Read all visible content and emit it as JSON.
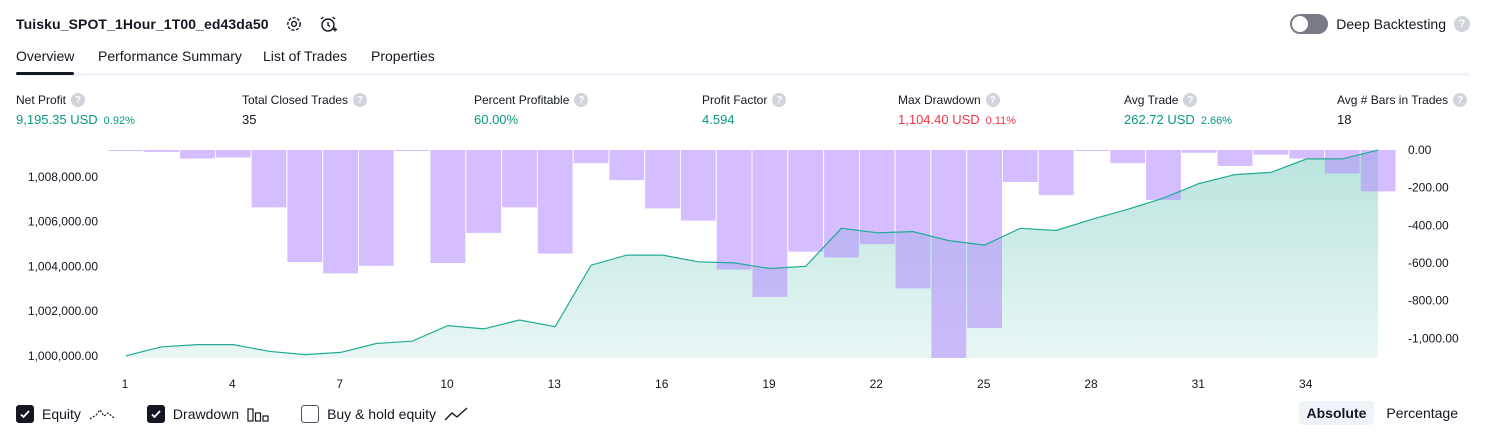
{
  "header": {
    "strategy_name": "Tuisku_SPOT_1Hour_1T00_ed43da50",
    "icons": [
      "gear-icon",
      "alarm-add-icon"
    ],
    "deep_backtesting_label": "Deep Backtesting",
    "deep_backtesting_on": false,
    "help_glyph": "?"
  },
  "tabs": [
    {
      "label": "Overview",
      "active": true
    },
    {
      "label": "Performance Summary",
      "active": false
    },
    {
      "label": "List of Trades",
      "active": false
    },
    {
      "label": "Properties",
      "active": false
    }
  ],
  "metrics": [
    {
      "label": "Net Profit",
      "value": "9,195.35 USD",
      "pct": "0.92%",
      "color": "#089981"
    },
    {
      "label": "Total Closed Trades",
      "value": "35",
      "pct": "",
      "color": "#131722"
    },
    {
      "label": "Percent Profitable",
      "value": "60.00%",
      "pct": "",
      "color": "#089981"
    },
    {
      "label": "Profit Factor",
      "value": "4.594",
      "pct": "",
      "color": "#089981"
    },
    {
      "label": "Max Drawdown",
      "value": "1,104.40 USD",
      "pct": "0.11%",
      "color": "#f23645"
    },
    {
      "label": "Avg Trade",
      "value": "262.72 USD",
      "pct": "2.66%",
      "color": "#089981"
    },
    {
      "label": "Avg # Bars in Trades",
      "value": "18",
      "pct": "",
      "color": "#131722"
    }
  ],
  "chart_data": {
    "type": "bar+area",
    "x": [
      1,
      2,
      3,
      4,
      5,
      6,
      7,
      8,
      9,
      10,
      11,
      12,
      13,
      14,
      15,
      16,
      17,
      18,
      19,
      20,
      21,
      22,
      23,
      24,
      25,
      26,
      27,
      28,
      29,
      30,
      31,
      32,
      33,
      34,
      35,
      36
    ],
    "x_tick_labels": [
      "1",
      "4",
      "7",
      "10",
      "13",
      "16",
      "19",
      "22",
      "25",
      "28",
      "31",
      "34"
    ],
    "series": [
      {
        "name": "Equity",
        "type": "area",
        "axis": "left",
        "values": [
          1000000,
          1000400,
          1000500,
          1000500,
          1000200,
          1000050,
          1000150,
          1000550,
          1000650,
          1001350,
          1001200,
          1001600,
          1001300,
          1004050,
          1004500,
          1004500,
          1004200,
          1004150,
          1003900,
          1004000,
          1005700,
          1005500,
          1005550,
          1005150,
          1004950,
          1005700,
          1005600,
          1006100,
          1006550,
          1007050,
          1007700,
          1008100,
          1008200,
          1008800,
          1008800,
          1009195
        ]
      },
      {
        "name": "Drawdown",
        "type": "bar",
        "axis": "right",
        "values": [
          -2,
          -10,
          -45,
          -40,
          -305,
          -595,
          -655,
          -615,
          -2,
          -600,
          -440,
          -305,
          -550,
          -70,
          -160,
          -310,
          -375,
          -635,
          -780,
          -540,
          -570,
          -500,
          -735,
          -1104,
          -945,
          -170,
          -240,
          -2,
          -70,
          -265,
          -15,
          -85,
          -25,
          -45,
          -125,
          -220
        ]
      }
    ],
    "left_axis_ticks": [
      "1,000,000.00",
      "1,002,000.00",
      "1,004,000.00",
      "1,006,000.00",
      "1,008,000.00"
    ],
    "left_ylim": [
      999900,
      1009200
    ],
    "right_axis_ticks": [
      "0.00",
      "-200.00",
      "-400.00",
      "-600.00",
      "-800.00",
      "-1,000.00"
    ],
    "right_ylim": [
      -1104.4,
      0
    ],
    "grid": false,
    "colors": {
      "equity_line": "#22ab94",
      "equity_fill": "#22ab94",
      "drawdown_bar": "#b388ff"
    }
  },
  "legend": [
    {
      "label": "Equity",
      "checked": true,
      "icon": "equity-line-icon"
    },
    {
      "label": "Drawdown",
      "checked": true,
      "icon": "drawdown-bars-icon"
    },
    {
      "label": "Buy & hold equity",
      "checked": false,
      "icon": "buy-hold-line-icon"
    }
  ],
  "view_mode": {
    "options": [
      "Absolute",
      "Percentage"
    ],
    "selected": "Absolute"
  }
}
